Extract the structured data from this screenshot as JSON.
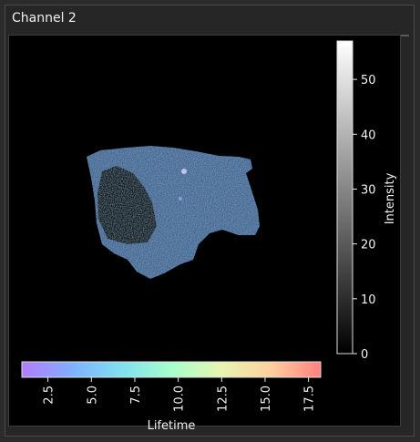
{
  "window": {
    "title": "Channel 2"
  },
  "colors": {
    "background": "#000000",
    "panel": "#262626",
    "text": "#f2f2f2",
    "lifetime_colormap": [
      "#b27cff",
      "#7fb0ff",
      "#7fe0f0",
      "#a6ffcc",
      "#e8f5b0",
      "#ffcf9e",
      "#ff8080"
    ]
  },
  "chart_data": [
    {
      "type": "heatmap",
      "title": "",
      "description_colorbars": "FLIM image with intensity and lifetime colorbars",
      "intensity_colorbar": {
        "label": "Intensity",
        "range": [
          0,
          57
        ],
        "ticks": [
          0,
          10,
          20,
          30,
          40,
          50
        ],
        "tick_labels": [
          "0",
          "10",
          "20",
          "30",
          "40",
          "50"
        ],
        "colormap": "gray"
      },
      "lifetime_colorbar": {
        "label": "Lifetime",
        "range": [
          1.0,
          18.2
        ],
        "ticks": [
          2.5,
          5.0,
          7.5,
          10.0,
          12.5,
          15.0,
          17.5
        ],
        "tick_labels": [
          "2.5",
          "5.0",
          "7.5",
          "10.0",
          "12.5",
          "15.0",
          "17.5"
        ],
        "colormap": "rainbow-pastel"
      }
    }
  ]
}
